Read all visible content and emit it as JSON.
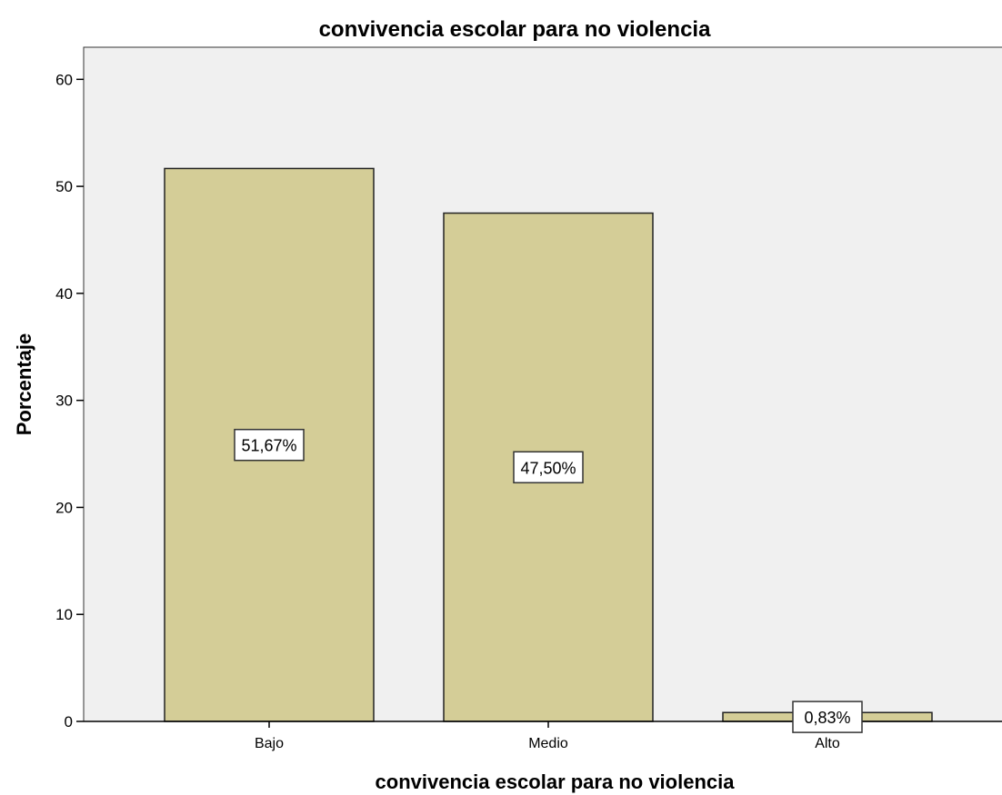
{
  "chart_data": {
    "type": "bar",
    "title": "convivencia escolar para no violencia",
    "xlabel": "convivencia escolar para no violencia",
    "ylabel": "Porcentaje",
    "categories": [
      "Bajo",
      "Medio",
      "Alto"
    ],
    "values": [
      51.67,
      47.5,
      0.83
    ],
    "data_labels": [
      "51,67%",
      "47,50%",
      "0,83%"
    ],
    "ylim": [
      0,
      63
    ],
    "yticks": [
      0,
      10,
      20,
      30,
      40,
      50,
      60
    ],
    "grid": false,
    "legend": "none",
    "colors": {
      "bar_fill": "#d4cd97",
      "bar_stroke": "#222222",
      "plot_background": "#f0f0f0",
      "page_background": "#ffffff"
    }
  }
}
